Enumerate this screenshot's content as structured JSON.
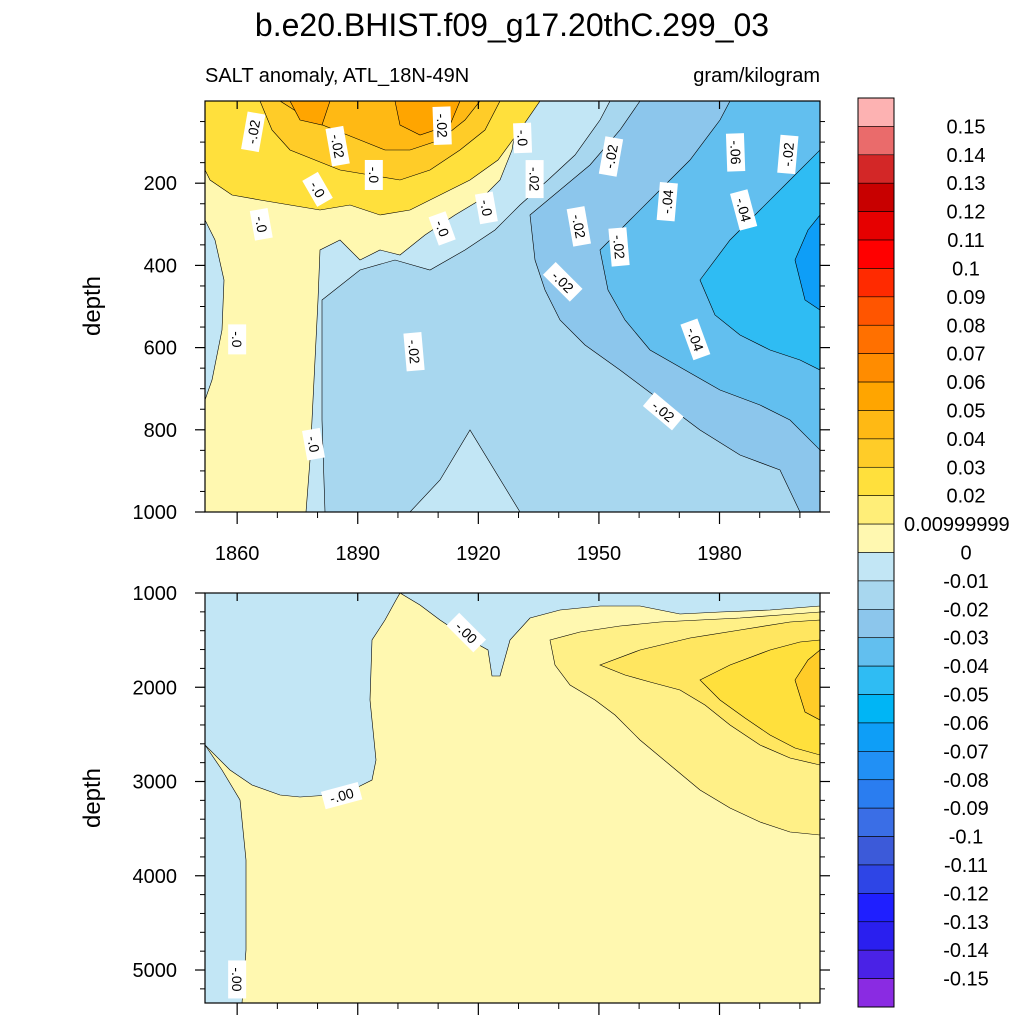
{
  "chart_data": {
    "type": "heatmap",
    "title": "b.e20.BHIST.f09_g17.20thC.299_03",
    "left_subtitle": "SALT anomaly, ATL_18N-49N",
    "right_subtitle": "gram/kilogram",
    "ylabel": "depth",
    "x_ticks": [
      "1860",
      "1890",
      "1920",
      "1950",
      "1980"
    ],
    "x_tick_values": [
      1860,
      1890,
      1920,
      1950,
      1980
    ],
    "xlim": [
      1852,
      2005
    ],
    "grid": false,
    "legend_placement": "right",
    "upper_panel": {
      "ylim": [
        0,
        1000
      ],
      "y_ticks": [
        "200",
        "400",
        "600",
        "800",
        "1000"
      ],
      "y_tick_values": [
        200,
        400,
        600,
        800,
        1000
      ],
      "contour_labels": [
        {
          "text": "-.02",
          "year": 1864,
          "depth": 75,
          "angle": -80
        },
        {
          "text": "-.02",
          "year": 1885,
          "depth": 110,
          "angle": 80
        },
        {
          "text": "-.02",
          "year": 1911,
          "depth": 60,
          "angle": 88
        },
        {
          "text": "-.0",
          "year": 1931,
          "depth": 90,
          "angle": 88
        },
        {
          "text": "-.0",
          "year": 1894,
          "depth": 180,
          "angle": 90
        },
        {
          "text": "-.0",
          "year": 1880,
          "depth": 215,
          "angle": 60
        },
        {
          "text": "-.02",
          "year": 1934,
          "depth": 190,
          "angle": 90
        },
        {
          "text": "-.0",
          "year": 1922,
          "depth": 260,
          "angle": 80
        },
        {
          "text": "-.0",
          "year": 1911,
          "depth": 310,
          "angle": 70
        },
        {
          "text": "-.0",
          "year": 1866,
          "depth": 300,
          "angle": 80
        },
        {
          "text": "-.02",
          "year": 1953,
          "depth": 135,
          "angle": -80
        },
        {
          "text": "-.04",
          "year": 1967,
          "depth": 245,
          "angle": -85
        },
        {
          "text": "-.06",
          "year": 1984,
          "depth": 125,
          "angle": 88
        },
        {
          "text": "-.02",
          "year": 1997,
          "depth": 130,
          "angle": -85
        },
        {
          "text": "-.04",
          "year": 1986,
          "depth": 265,
          "angle": 75
        },
        {
          "text": "-.02",
          "year": 1945,
          "depth": 305,
          "angle": 80
        },
        {
          "text": "-.02",
          "year": 1955,
          "depth": 355,
          "angle": 85
        },
        {
          "text": "-.02",
          "year": 1941,
          "depth": 440,
          "angle": 45
        },
        {
          "text": "-.04",
          "year": 1974,
          "depth": 580,
          "angle": 70
        },
        {
          "text": "-.0",
          "year": 1860,
          "depth": 580,
          "angle": 90
        },
        {
          "text": "-.02",
          "year": 1904,
          "depth": 610,
          "angle": 85
        },
        {
          "text": "-.02",
          "year": 1966,
          "depth": 755,
          "angle": 40
        },
        {
          "text": "-.0",
          "year": 1879,
          "depth": 835,
          "angle": 80
        }
      ]
    },
    "lower_panel": {
      "ylim": [
        1000,
        5350
      ],
      "y_ticks": [
        "1000",
        "2000",
        "3000",
        "4000",
        "5000"
      ],
      "y_tick_values": [
        1000,
        2000,
        3000,
        4000,
        5000
      ],
      "contour_labels": [
        {
          "text": "-.00",
          "year": 1917,
          "depth": 1420,
          "angle": 45
        },
        {
          "text": "-.00",
          "year": 1886,
          "depth": 3150,
          "angle": -15
        },
        {
          "text": "-.00",
          "year": 1860,
          "depth": 5100,
          "angle": 90
        }
      ]
    },
    "colorbar": {
      "labels": [
        "0.15",
        "0.14",
        "0.13",
        "0.12",
        "0.11",
        "0.1",
        "0.09",
        "0.08",
        "0.07",
        "0.06",
        "0.05",
        "0.04",
        "0.03",
        "0.02",
        "0.00999999",
        "0",
        "-0.01",
        "-0.02",
        "-0.03",
        "-0.04",
        "-0.05",
        "-0.06",
        "-0.07",
        "-0.08",
        "-0.09",
        "-0.1",
        "-0.11",
        "-0.12",
        "-0.13",
        "-0.14",
        "-0.15"
      ],
      "colors": [
        "#fdb2b2",
        "#ea6b6b",
        "#d32727",
        "#c80000",
        "#e60000",
        "#ff0000",
        "#ff2a00",
        "#ff5500",
        "#ff7000",
        "#ff8c00",
        "#ffa500",
        "#ffb914",
        "#ffcc28",
        "#ffe03c",
        "#ffee78",
        "#fff8b0",
        "#c2e6f5",
        "#a8d7ef",
        "#8cc6ec",
        "#62bfef",
        "#2fbcf3",
        "#00b5f5",
        "#0e9ef7",
        "#2190f5",
        "#2a7df0",
        "#3a6ee6",
        "#3c5ad9",
        "#2e45e6",
        "#1f1fff",
        "#2a1fef",
        "#4a22e6",
        "#8a2be2"
      ]
    }
  }
}
